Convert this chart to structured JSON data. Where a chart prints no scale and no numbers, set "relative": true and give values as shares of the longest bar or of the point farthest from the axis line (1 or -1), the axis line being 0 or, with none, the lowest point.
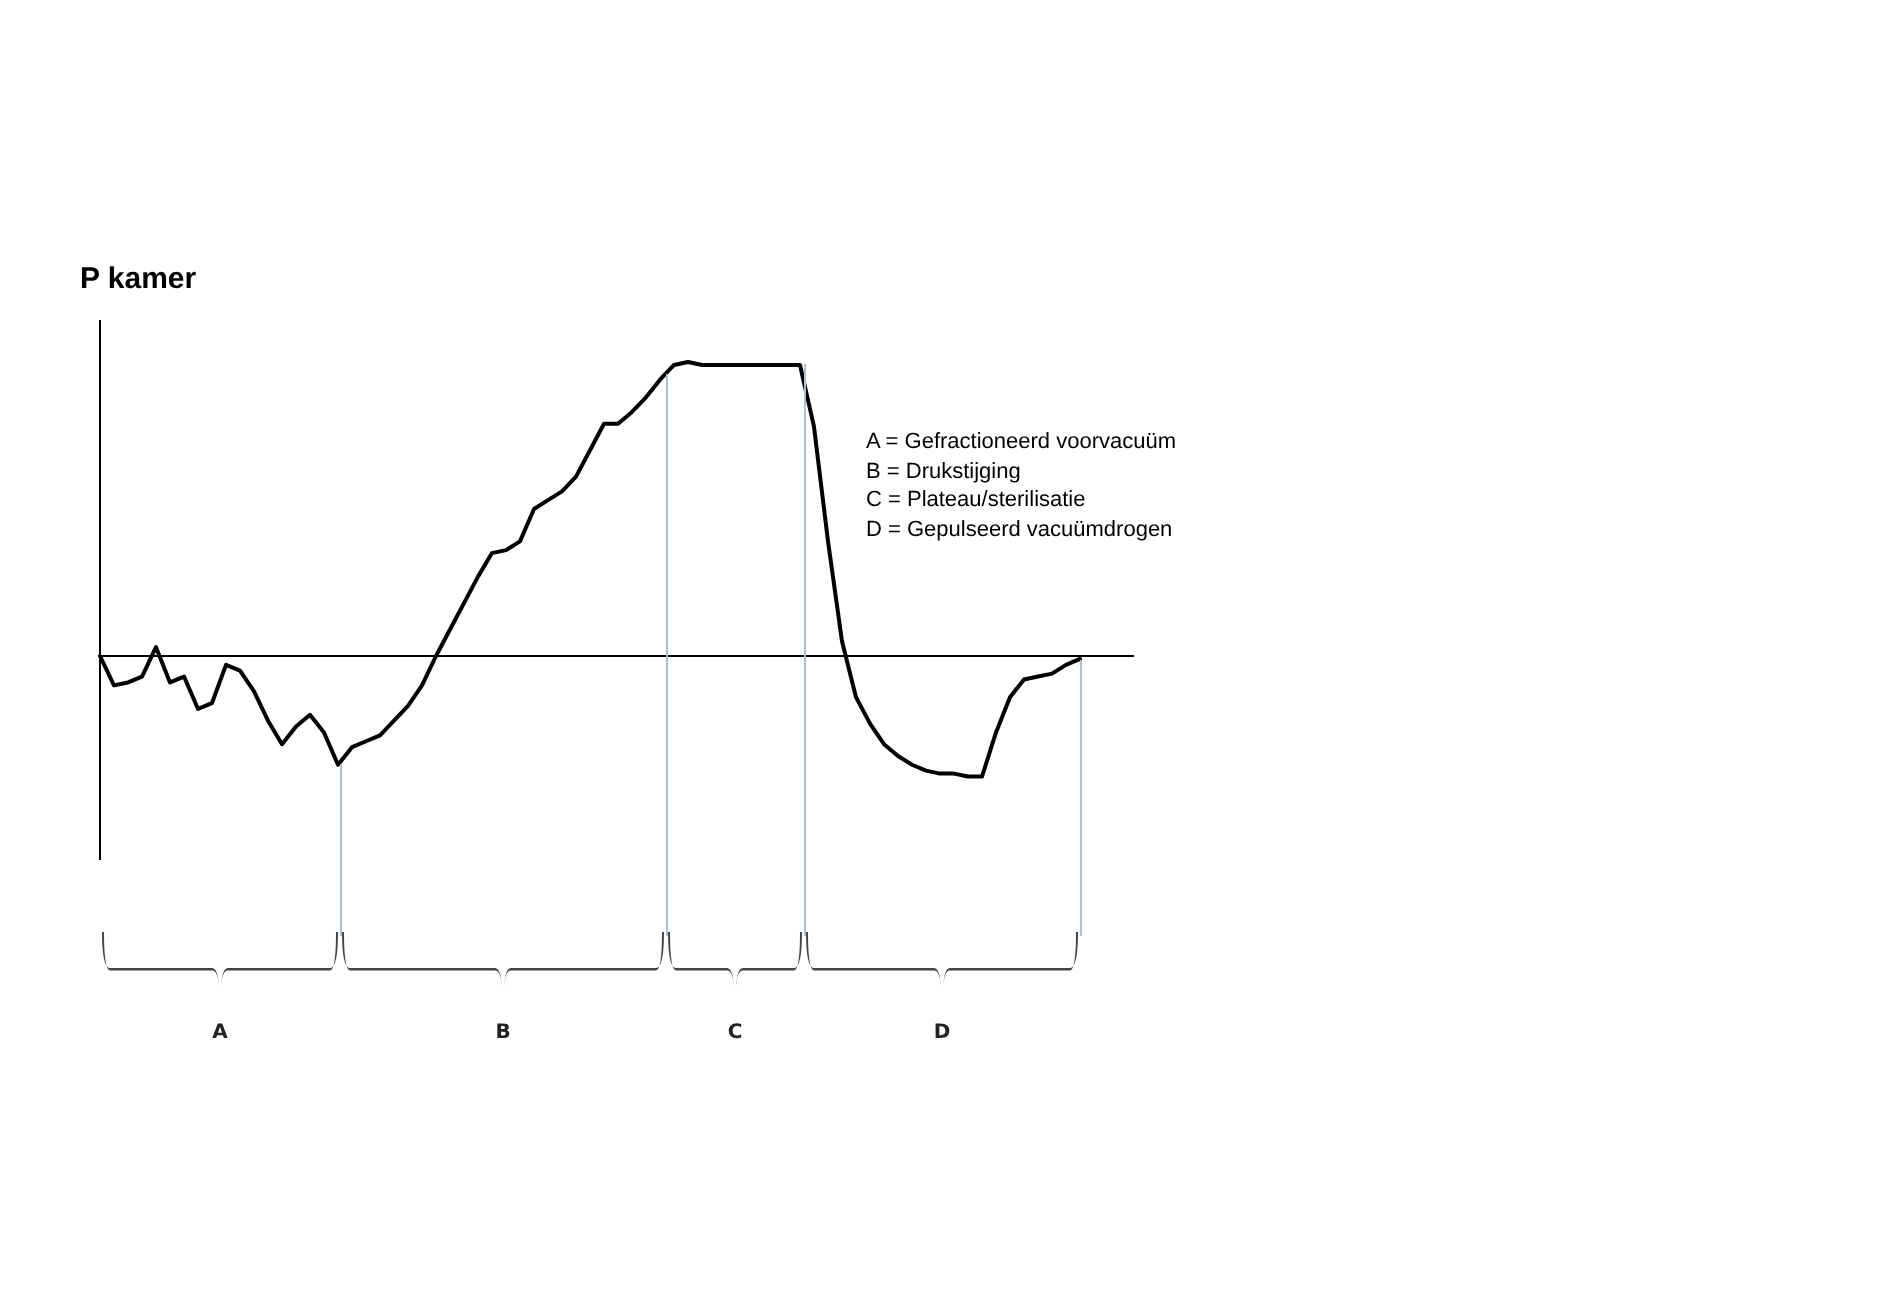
{
  "chart_data": {
    "type": "line",
    "title": "P kamer",
    "relative": true,
    "legend": false,
    "marker": "none",
    "line_style": "solid",
    "categories": [
      null,
      null,
      null,
      null,
      null,
      null,
      null,
      null,
      null,
      null,
      null,
      null,
      null,
      null,
      null,
      null,
      null,
      null,
      null,
      null,
      null,
      null,
      null,
      null,
      null,
      null,
      null,
      null,
      null,
      null,
      null,
      null,
      null,
      null,
      null,
      null,
      null,
      null,
      null,
      null,
      null,
      null,
      null,
      null,
      null,
      null,
      null,
      null,
      null,
      null,
      null,
      null,
      null,
      null,
      null,
      null,
      null,
      null,
      null,
      null,
      null,
      null,
      null,
      null,
      null,
      null,
      null,
      null,
      null,
      null,
      null
    ],
    "series": [
      {
        "color": "#000000",
        "values": [
          0.0,
          -0.1,
          -0.09,
          -0.07,
          0.03,
          -0.09,
          -0.07,
          -0.18,
          -0.16,
          -0.03,
          -0.05,
          -0.12,
          -0.22,
          -0.3,
          -0.24,
          -0.2,
          -0.26,
          -0.37,
          -0.31,
          -0.29,
          -0.27,
          -0.22,
          -0.17,
          -0.1,
          0.0,
          0.09,
          0.18,
          0.27,
          0.35,
          0.36,
          0.39,
          0.5,
          0.53,
          0.56,
          0.61,
          0.7,
          0.79,
          0.79,
          0.83,
          0.88,
          0.94,
          0.99,
          1.0,
          0.99,
          0.99,
          0.99,
          0.99,
          0.99,
          0.99,
          0.99,
          0.99,
          0.78,
          0.39,
          0.05,
          -0.14,
          -0.23,
          -0.3,
          -0.34,
          -0.37,
          -0.39,
          -0.4,
          -0.4,
          -0.41,
          -0.41,
          -0.26,
          -0.14,
          -0.08,
          -0.07,
          -0.06,
          -0.03,
          -0.01
        ]
      }
    ],
    "annotations": [
      "A",
      "B",
      "C",
      "D",
      "A = Gefractioneerd voorvacuüm",
      "B = Drukstijging",
      "C = Plateau/sterilisatie",
      "D = Gepulseerd vacuümdrogen"
    ]
  }
}
